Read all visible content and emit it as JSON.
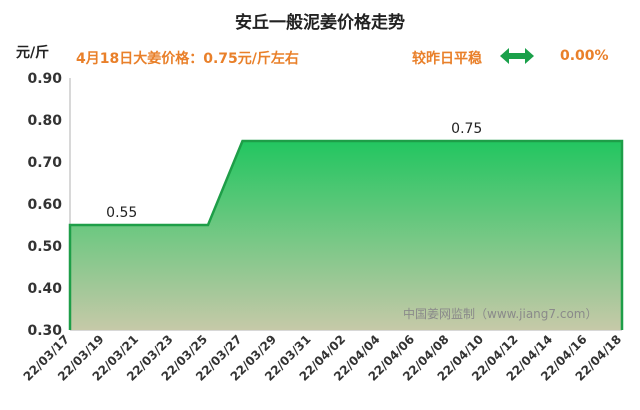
{
  "header": {
    "title": "安丘一般泥姜价格走势",
    "unit": "元/斤",
    "price_text": "4月18日大姜价格：0.75元/斤左右",
    "compare_label": "较昨日平稳",
    "change_value": "0.00%",
    "arrow_icon": "left-right-arrow-icon",
    "arrow_color": "#1aa04a"
  },
  "watermark": "中国姜网监制（www.jiang7.com）",
  "chart_data": {
    "type": "area",
    "title": "安丘一般泥姜价格走势",
    "ylabel": "元/斤",
    "xlabel": "",
    "ylim": [
      0.3,
      0.9
    ],
    "yticks": [
      "0.90",
      "0.80",
      "0.70",
      "0.60",
      "0.50",
      "0.40",
      "0.30"
    ],
    "x_tick_labels": [
      "22/03/17",
      "22/03/19",
      "22/03/21",
      "22/03/23",
      "22/03/25",
      "22/03/27",
      "22/03/29",
      "22/03/31",
      "22/04/02",
      "22/04/04",
      "22/04/06",
      "22/04/08",
      "22/04/10",
      "22/04/12",
      "22/04/14",
      "22/04/16",
      "22/04/18"
    ],
    "x": [
      "22/03/17",
      "22/03/18",
      "22/03/19",
      "22/03/20",
      "22/03/21",
      "22/03/22",
      "22/03/23",
      "22/03/24",
      "22/03/25",
      "22/03/26",
      "22/03/27",
      "22/03/28",
      "22/03/29",
      "22/03/30",
      "22/03/31",
      "22/04/01",
      "22/04/02",
      "22/04/03",
      "22/04/04",
      "22/04/05",
      "22/04/06",
      "22/04/07",
      "22/04/08",
      "22/04/09",
      "22/04/10",
      "22/04/11",
      "22/04/12",
      "22/04/13",
      "22/04/14",
      "22/04/15",
      "22/04/16",
      "22/04/17",
      "22/04/18"
    ],
    "series": [
      {
        "values": [
          0.55,
          0.55,
          0.55,
          0.55,
          0.55,
          0.55,
          0.55,
          0.55,
          0.55,
          0.65,
          0.75,
          0.75,
          0.75,
          0.75,
          0.75,
          0.75,
          0.75,
          0.75,
          0.75,
          0.75,
          0.75,
          0.75,
          0.75,
          0.75,
          0.75,
          0.75,
          0.75,
          0.75,
          0.75,
          0.75,
          0.75,
          0.75,
          0.75
        ]
      }
    ],
    "data_labels": [
      {
        "x": "22/03/20",
        "text": "0.55"
      },
      {
        "x": "22/04/09",
        "text": "0.75"
      }
    ],
    "grid": false,
    "legend": "none",
    "line_color": "#1e9e48",
    "fill_top_color": "#22c660",
    "fill_bottom_color": "#c6c9a8"
  }
}
